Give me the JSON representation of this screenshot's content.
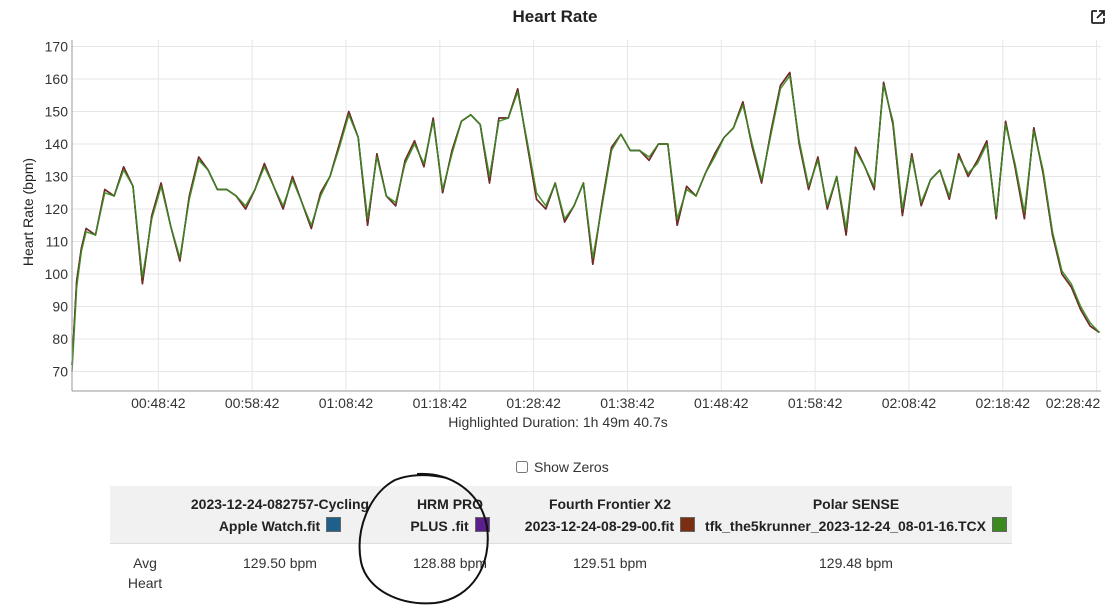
{
  "header": {
    "title": "Heart Rate",
    "export_icon": "external-link-icon"
  },
  "chart_data": {
    "type": "line",
    "title": "Heart Rate",
    "ylabel": "Heart Rate (bpm)",
    "xlabel": "Highlighted Duration: 1h 49m 40.7s",
    "ylim": [
      64,
      172
    ],
    "yticks": [
      70,
      80,
      90,
      100,
      110,
      120,
      130,
      140,
      150,
      160,
      170
    ],
    "xlim": [
      "00:39:30",
      "02:29:10"
    ],
    "xticks": [
      "00:48:42",
      "00:58:42",
      "01:08:42",
      "01:18:42",
      "01:28:42",
      "01:38:42",
      "01:48:42",
      "01:58:42",
      "02:08:42",
      "02:18:42",
      "02:28:42"
    ],
    "grid": true,
    "x": [
      "00:39:30",
      "00:40:00",
      "00:40:30",
      "00:41:00",
      "00:42:00",
      "00:43:00",
      "00:44:00",
      "00:45:00",
      "00:46:00",
      "00:47:00",
      "00:48:00",
      "00:49:00",
      "00:50:00",
      "00:51:00",
      "00:52:00",
      "00:53:00",
      "00:54:00",
      "00:55:00",
      "00:56:00",
      "00:57:00",
      "00:58:00",
      "00:59:00",
      "01:00:00",
      "01:01:00",
      "01:02:00",
      "01:03:00",
      "01:04:00",
      "01:05:00",
      "01:06:00",
      "01:07:00",
      "01:08:00",
      "01:09:00",
      "01:10:00",
      "01:11:00",
      "01:12:00",
      "01:13:00",
      "01:14:00",
      "01:15:00",
      "01:16:00",
      "01:17:00",
      "01:18:00",
      "01:19:00",
      "01:20:00",
      "01:21:00",
      "01:22:00",
      "01:23:00",
      "01:24:00",
      "01:25:00",
      "01:26:00",
      "01:27:00",
      "01:28:00",
      "01:29:00",
      "01:30:00",
      "01:31:00",
      "01:32:00",
      "01:33:00",
      "01:34:00",
      "01:35:00",
      "01:36:00",
      "01:37:00",
      "01:38:00",
      "01:39:00",
      "01:40:00",
      "01:41:00",
      "01:42:00",
      "01:43:00",
      "01:44:00",
      "01:45:00",
      "01:46:00",
      "01:47:00",
      "01:48:00",
      "01:49:00",
      "01:50:00",
      "01:51:00",
      "01:52:00",
      "01:53:00",
      "01:54:00",
      "01:55:00",
      "01:56:00",
      "01:57:00",
      "01:58:00",
      "01:59:00",
      "02:00:00",
      "02:01:00",
      "02:02:00",
      "02:03:00",
      "02:04:00",
      "02:05:00",
      "02:06:00",
      "02:07:00",
      "02:08:00",
      "02:09:00",
      "02:10:00",
      "02:11:00",
      "02:12:00",
      "02:13:00",
      "02:14:00",
      "02:15:00",
      "02:16:00",
      "02:17:00",
      "02:18:00",
      "02:19:00",
      "02:20:00",
      "02:21:00",
      "02:22:00",
      "02:23:00",
      "02:24:00",
      "02:25:00",
      "02:26:00",
      "02:27:00",
      "02:28:00",
      "02:29:00"
    ],
    "series": [
      {
        "name": "2023-12-24-082757-Cycling Apple Watch.fit",
        "color": "#1f5f8b",
        "values": [
          72,
          98,
          108,
          114,
          112,
          126,
          124,
          133,
          127,
          97,
          118,
          128,
          115,
          104,
          124,
          136,
          132,
          126,
          126,
          124,
          120,
          126,
          134,
          127,
          120,
          130,
          122,
          114,
          125,
          130,
          140,
          150,
          142,
          115,
          137,
          124,
          121,
          135,
          141,
          133,
          148,
          125,
          138,
          147,
          149,
          146,
          128,
          148,
          148,
          157,
          140,
          123,
          120,
          128,
          116,
          121,
          128,
          103,
          122,
          139,
          143,
          138,
          138,
          135,
          140,
          140,
          115,
          127,
          124,
          131,
          137,
          142,
          145,
          153,
          139,
          128,
          144,
          158,
          162,
          140,
          126,
          136,
          120,
          130,
          112,
          139,
          133,
          126,
          159,
          146,
          118,
          137,
          121,
          129,
          132,
          123,
          137,
          130,
          135,
          141,
          117,
          147,
          133,
          117,
          145,
          131,
          112,
          100,
          96,
          89,
          84,
          82
        ]
      },
      {
        "name": "HRM PRO PLUS .fit",
        "color": "#5b1f8b",
        "values": [
          72,
          98,
          108,
          114,
          112,
          126,
          124,
          133,
          127,
          97,
          118,
          128,
          115,
          104,
          124,
          136,
          132,
          126,
          126,
          124,
          120,
          126,
          134,
          127,
          120,
          130,
          122,
          114,
          125,
          130,
          140,
          150,
          142,
          115,
          137,
          124,
          121,
          135,
          141,
          133,
          148,
          125,
          138,
          147,
          149,
          146,
          128,
          148,
          148,
          157,
          140,
          123,
          120,
          128,
          116,
          121,
          128,
          103,
          122,
          139,
          143,
          138,
          138,
          135,
          140,
          140,
          115,
          127,
          124,
          131,
          137,
          142,
          145,
          153,
          139,
          128,
          144,
          158,
          162,
          140,
          126,
          136,
          120,
          130,
          112,
          139,
          133,
          126,
          159,
          146,
          118,
          137,
          121,
          129,
          132,
          123,
          137,
          130,
          135,
          141,
          117,
          147,
          133,
          117,
          145,
          131,
          112,
          100,
          96,
          89,
          84,
          82
        ]
      },
      {
        "name": "Fourth Frontier X2 2023-12-24-08-29-00.fit",
        "color": "#7a2e12",
        "values": [
          72,
          98,
          108,
          114,
          112,
          126,
          124,
          133,
          127,
          97,
          118,
          128,
          115,
          104,
          124,
          136,
          132,
          126,
          126,
          124,
          120,
          126,
          134,
          127,
          120,
          130,
          122,
          114,
          125,
          130,
          140,
          150,
          142,
          115,
          137,
          124,
          121,
          135,
          141,
          133,
          148,
          125,
          138,
          147,
          149,
          146,
          128,
          148,
          148,
          157,
          140,
          123,
          120,
          128,
          116,
          121,
          128,
          103,
          122,
          139,
          143,
          138,
          138,
          135,
          140,
          140,
          115,
          127,
          124,
          131,
          137,
          142,
          145,
          153,
          139,
          128,
          144,
          158,
          162,
          140,
          126,
          136,
          120,
          130,
          112,
          139,
          133,
          126,
          159,
          146,
          118,
          137,
          121,
          129,
          132,
          123,
          137,
          130,
          135,
          141,
          117,
          147,
          133,
          117,
          145,
          131,
          112,
          100,
          96,
          89,
          84,
          82
        ]
      },
      {
        "name": "Polar SENSE tfk_the5krunner_2023-12-24_08-01-16.TCX",
        "color": "#3a8a1f",
        "values": [
          70,
          96,
          107,
          113,
          112,
          125,
          124,
          132,
          127,
          99,
          117,
          127,
          115,
          105,
          123,
          135,
          132,
          126,
          126,
          124,
          121,
          126,
          133,
          127,
          121,
          129,
          122,
          115,
          124,
          130,
          139,
          149,
          142,
          117,
          136,
          124,
          122,
          134,
          140,
          134,
          147,
          126,
          137,
          147,
          149,
          146,
          130,
          147,
          148,
          156,
          141,
          125,
          121,
          128,
          117,
          121,
          128,
          105,
          121,
          138,
          143,
          138,
          138,
          136,
          140,
          140,
          117,
          126,
          124,
          131,
          136,
          142,
          145,
          152,
          140,
          129,
          143,
          157,
          161,
          141,
          127,
          135,
          121,
          130,
          114,
          138,
          133,
          127,
          158,
          147,
          120,
          136,
          122,
          129,
          132,
          124,
          136,
          131,
          134,
          140,
          118,
          146,
          134,
          119,
          144,
          132,
          113,
          101,
          97,
          90,
          85,
          82
        ]
      }
    ]
  },
  "controls": {
    "show_zeros_label": "Show Zeros",
    "show_zeros_checked": false
  },
  "table": {
    "headers": [
      {
        "line1": "",
        "line2": ""
      },
      {
        "line1": "2023-12-24-082757-Cycling",
        "line2": "Apple Watch.fit",
        "swatch": "#1f5f8b"
      },
      {
        "line1": "HRM PRO",
        "line2": "PLUS .fit",
        "swatch": "#5b1f8b"
      },
      {
        "line1": "Fourth Frontier X2",
        "line2": "2023-12-24-08-29-00.fit",
        "swatch": "#7a2e12"
      },
      {
        "line1": "Polar SENSE",
        "line2": "tfk_the5krunner_2023-12-24_08-01-16.TCX",
        "swatch": "#3a8a1f"
      }
    ],
    "row_label_line1": "Avg",
    "row_label_line2": "Heart",
    "avg_values": [
      "129.50 bpm",
      "128.88 bpm",
      "129.51 bpm",
      "129.48 bpm"
    ]
  }
}
